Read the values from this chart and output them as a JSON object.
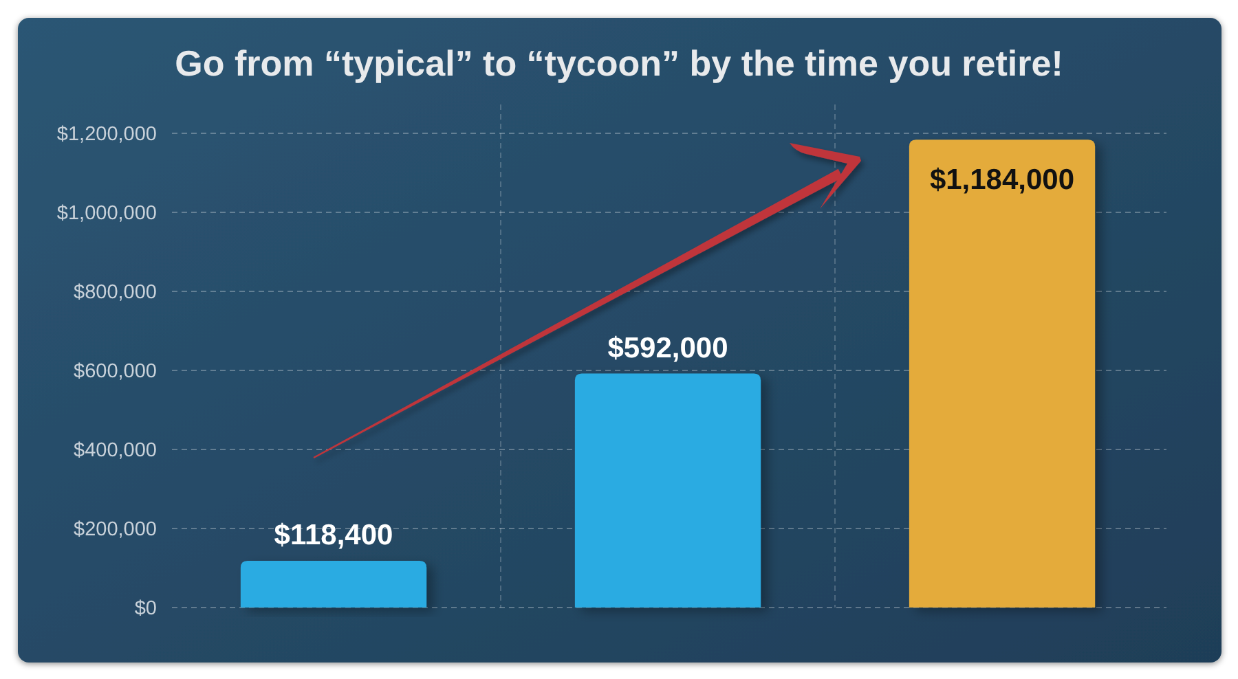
{
  "chart_data": {
    "type": "bar",
    "title": "Go from “typical” to “tycoon” by the time you retire!",
    "categories": [
      null,
      null,
      null
    ],
    "values": [
      118400,
      592000,
      1184000
    ],
    "colors": [
      "#29abe2",
      "#29abe2",
      "#e4ab3a"
    ],
    "value_labels": [
      "$118,400",
      "$592,000",
      "$1,184,000"
    ],
    "ylim": [
      0,
      1200000
    ],
    "yticks": [
      {
        "value": 0,
        "label": "$0"
      },
      {
        "value": 200000,
        "label": "$200,000"
      },
      {
        "value": 400000,
        "label": "$400,000"
      },
      {
        "value": 600000,
        "label": "$600,000"
      },
      {
        "value": 800000,
        "label": "$800,000"
      },
      {
        "value": 1000000,
        "label": "$1,000,000"
      },
      {
        "value": 1200000,
        "label": "$1,200,000"
      }
    ],
    "grid": true
  }
}
